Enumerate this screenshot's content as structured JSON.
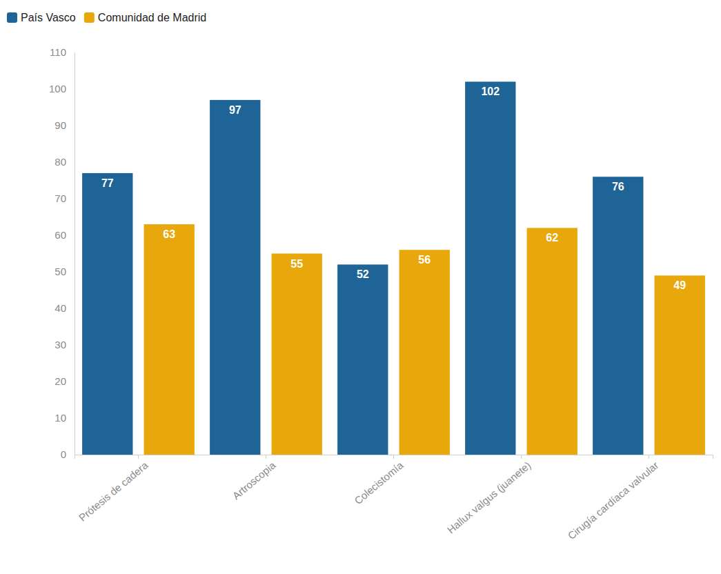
{
  "chart_data": {
    "type": "bar",
    "categories": [
      "Prótesis de cadera",
      "Artroscopia",
      "Colecistomía",
      "Hallux valgus (juanete)",
      "Cirugía cardíaca valvular"
    ],
    "series": [
      {
        "name": "País Vasco",
        "color": "#1f6496",
        "values": [
          77,
          97,
          52,
          102,
          76
        ]
      },
      {
        "name": "Comunidad de Madrid",
        "color": "#e8a80c",
        "values": [
          63,
          55,
          56,
          62,
          49
        ]
      }
    ],
    "ylim": [
      0,
      110
    ],
    "yticks": [
      0,
      10,
      20,
      30,
      40,
      50,
      60,
      70,
      80,
      90,
      100,
      110
    ],
    "grid": false,
    "legend": "top-left",
    "data_labels": true
  }
}
